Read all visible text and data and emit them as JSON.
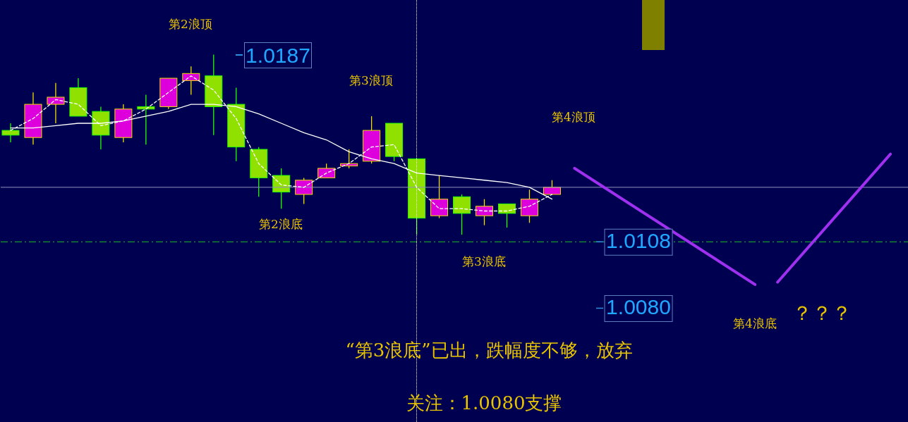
{
  "chart_data": {
    "type": "candlestick",
    "categories": [
      null,
      null,
      null,
      null,
      null,
      null,
      null,
      null,
      null,
      null,
      null,
      null,
      null,
      null,
      null,
      null,
      null,
      null,
      null,
      null,
      null,
      null,
      null,
      null,
      null,
      null,
      null,
      null,
      null,
      null,
      null,
      null,
      null,
      null,
      null,
      null,
      null,
      null,
      null,
      null
    ],
    "ohlc": [
      [
        1.0155,
        1.0158,
        1.015,
        1.0153
      ],
      [
        1.0152,
        1.0171,
        1.0149,
        1.0166
      ],
      [
        1.0166,
        1.0175,
        1.0158,
        1.0169
      ],
      [
        1.0173,
        1.0177,
        1.0161,
        1.0161
      ],
      [
        1.0163,
        1.0165,
        1.0147,
        1.0153
      ],
      [
        1.0152,
        1.0166,
        1.015,
        1.0164
      ],
      [
        1.0165,
        1.017,
        1.0149,
        1.0164
      ],
      [
        1.0165,
        1.0177,
        1.0164,
        1.0177
      ],
      [
        1.0176,
        1.0182,
        1.017,
        1.0179
      ],
      [
        1.0178,
        1.0187,
        1.0153,
        1.0165
      ],
      [
        1.0166,
        1.0173,
        1.0142,
        1.0148
      ],
      [
        1.0147,
        1.0148,
        1.0127,
        1.0135
      ],
      [
        1.0136,
        1.0139,
        1.0122,
        1.0129
      ],
      [
        1.0128,
        1.0135,
        1.0124,
        1.0134
      ],
      [
        1.0135,
        1.0141,
        1.0135,
        1.0139
      ],
      [
        1.014,
        1.0147,
        1.0139,
        1.0141
      ],
      [
        1.0142,
        1.0161,
        1.0141,
        1.0155
      ],
      [
        1.0158,
        1.0158,
        1.0142,
        1.0144
      ],
      [
        1.0143,
        1.0143,
        1.0111,
        1.0118
      ],
      [
        1.0119,
        1.0136,
        1.0118,
        1.0126
      ],
      [
        1.0127,
        1.0128,
        1.0111,
        1.012
      ],
      [
        1.0119,
        1.0126,
        1.0115,
        1.0123
      ],
      [
        1.0124,
        1.0124,
        1.0114,
        1.012
      ],
      [
        1.0119,
        1.013,
        1.0116,
        1.0126
      ],
      [
        1.0128,
        1.0134,
        1.0128,
        1.0131
      ],
      null,
      null,
      null,
      null,
      null,
      null,
      null,
      null,
      null,
      null,
      null,
      null,
      null,
      null,
      null
    ],
    "colors": [
      "#90e000",
      "#dd00dd",
      "#dd00dd",
      "#90e000",
      "#90e000",
      "#dd00dd",
      "#90e000",
      "#dd00dd",
      "#dd00dd",
      "#90e000",
      "#90e000",
      "#90e000",
      "#90e000",
      "#dd00dd",
      "#dd00dd",
      "#dd00dd",
      "#dd00dd",
      "#90e000",
      "#90e000",
      "#dd00dd",
      "#90e000",
      "#dd00dd",
      "#90e000",
      "#dd00dd",
      "#dd00dd",
      null,
      null,
      null,
      null,
      null,
      null,
      null,
      null,
      null,
      null,
      null,
      null,
      null,
      null,
      null
    ],
    "series": [
      {
        "type": "line",
        "color": "#ffffff",
        "line_style": "solid",
        "values": [
          1.0156,
          1.0156,
          1.0157,
          1.0158,
          1.0158,
          1.0159,
          1.0161,
          1.0163,
          1.0166,
          1.0166,
          1.0165,
          1.0162,
          1.0158,
          1.0154,
          1.0151,
          1.0146,
          1.0143,
          1.0141,
          1.0137,
          1.0136,
          1.0135,
          1.0134,
          1.0133,
          1.0131,
          1.0126,
          null,
          null,
          null,
          null,
          null,
          null,
          null,
          null,
          null,
          null,
          null,
          null,
          null,
          null,
          null
        ]
      },
      {
        "type": "line",
        "color": "#ffffff",
        "line_style": "dashed",
        "values": [
          1.0155,
          1.016,
          1.0168,
          1.0166,
          1.0157,
          1.0159,
          1.0164,
          1.0171,
          1.0178,
          1.0172,
          1.016,
          1.0141,
          1.0132,
          1.0131,
          1.0137,
          1.0141,
          1.0148,
          1.0149,
          1.0131,
          1.0122,
          1.0122,
          1.0121,
          1.0121,
          1.0123,
          1.0128,
          null,
          null,
          null,
          null,
          null,
          null,
          null,
          null,
          null,
          null,
          null,
          null,
          null,
          null,
          null
        ]
      },
      {
        "type": "line",
        "color": "#a030f0",
        "line_style": "solid",
        "values": [
          null,
          null,
          null,
          null,
          null,
          null,
          null,
          null,
          null,
          null,
          null,
          null,
          null,
          null,
          null,
          null,
          null,
          null,
          null,
          null,
          null,
          null,
          null,
          null,
          null,
          1.0139,
          null,
          null,
          null,
          null,
          null,
          null,
          null,
          1.009,
          null,
          null,
          null,
          null,
          null,
          null
        ]
      },
      {
        "type": "line",
        "color": "#a030f0",
        "line_style": "solid",
        "values": [
          null,
          null,
          null,
          null,
          null,
          null,
          null,
          null,
          null,
          null,
          null,
          null,
          null,
          null,
          null,
          null,
          null,
          null,
          null,
          null,
          null,
          null,
          null,
          null,
          null,
          null,
          null,
          null,
          null,
          null,
          null,
          null,
          null,
          null,
          1.0091,
          null,
          null,
          null,
          null,
          1.0145
        ]
      }
    ],
    "ylim": [
      1.0032,
      1.021
    ],
    "yticks": [
      {
        "value": 1.008,
        "label": "1.0080"
      },
      1.0108
    ],
    "tick_labels": "y",
    "ref_lines": [
      {
        "axis": "y",
        "value": 1.0131,
        "color": "#9090c0",
        "line_style": "solid"
      },
      {
        "axis": "y",
        "value": 1.0108,
        "color": "#20c020",
        "line_style": "dashed"
      }
    ],
    "annotations": [
      "1.0187",
      "第2浪顶",
      "第3浪顶",
      "第4浪顶",
      "第2浪底",
      "第3浪底",
      "第4浪底",
      "？？？",
      "“第3浪底”已出，跌幅度不够，放弃",
      "关注：1.0080支撑"
    ]
  }
}
